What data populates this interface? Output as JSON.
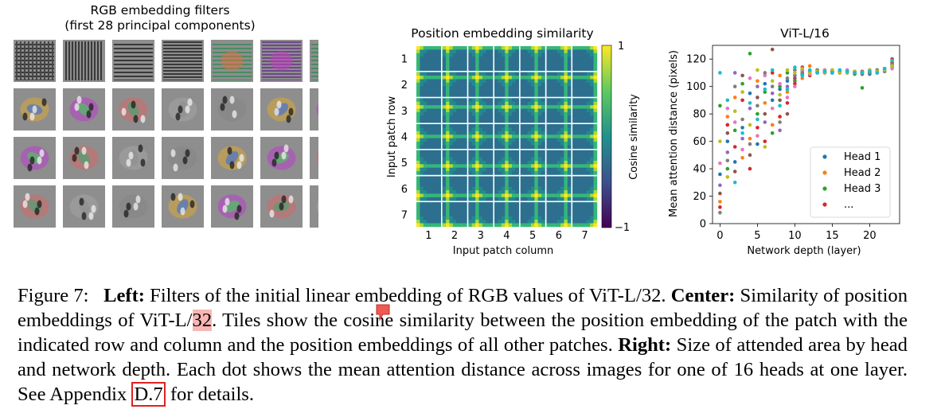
{
  "left": {
    "title_line1": "RGB embedding filters",
    "title_line2": "(first 28 principal components)",
    "grid": {
      "rows": 4,
      "cols": 7
    }
  },
  "center": {
    "title": "Position embedding similarity",
    "xlabel": "Input patch column",
    "ylabel": "Input patch row",
    "ticks": [
      "1",
      "2",
      "3",
      "4",
      "5",
      "6",
      "7"
    ],
    "colorbar_label": "Cosine similarity",
    "colorbar_max": "1",
    "colorbar_min": "−1"
  },
  "chart_data": {
    "type": "scatter",
    "title": "ViT-L/16",
    "xlabel": "Network depth (layer)",
    "ylabel": "Mean attention distance (pixels)",
    "xlim": [
      -1,
      24
    ],
    "ylim": [
      0,
      130
    ],
    "xticks": [
      0,
      5,
      10,
      15,
      20
    ],
    "yticks": [
      0,
      20,
      40,
      60,
      80,
      100,
      120
    ],
    "legend_placement": "lower-right",
    "legend": [
      "Head 1",
      "Head 2",
      "Head 3",
      "..."
    ],
    "colors": [
      "#1f77b4",
      "#ff7f0e",
      "#2ca02c",
      "#d62728",
      "#9467bd",
      "#8c564b",
      "#e377c2",
      "#7f7f7f",
      "#bcbd22",
      "#17becf"
    ],
    "series": [
      {
        "name": "Head 1",
        "color": "#1f77b4",
        "x": [
          0,
          1,
          2,
          3,
          4,
          5,
          6,
          7,
          8,
          9,
          10,
          11,
          12,
          13,
          14,
          15,
          16,
          17,
          18,
          19,
          20,
          21,
          22,
          23
        ],
        "y": [
          36,
          60,
          45,
          70,
          95,
          58,
          102,
          90,
          98,
          104,
          108,
          109,
          110,
          111,
          110,
          110,
          111,
          110,
          111,
          110,
          109,
          110,
          112,
          115
        ]
      },
      {
        "name": "Head 2",
        "color": "#ff7f0e",
        "x": [
          0,
          1,
          2,
          3,
          4,
          5,
          6,
          7,
          8,
          9,
          10,
          11,
          12,
          13,
          14,
          15,
          16,
          17,
          18,
          19,
          20,
          21,
          22,
          23
        ],
        "y": [
          16,
          78,
          92,
          48,
          62,
          104,
          88,
          72,
          108,
          96,
          112,
          106,
          115,
          112,
          110,
          111,
          110,
          112,
          110,
          111,
          110,
          111,
          112,
          118
        ]
      },
      {
        "name": "Head 3",
        "color": "#2ca02c",
        "x": [
          0,
          1,
          2,
          3,
          4,
          5,
          6,
          7,
          8,
          9,
          10,
          11,
          12,
          13,
          14,
          15,
          16,
          17,
          18,
          19,
          20,
          21,
          22,
          23
        ],
        "y": [
          86,
          40,
          68,
          102,
          124,
          80,
          96,
          66,
          100,
          110,
          104,
          112,
          111,
          110,
          112,
          110,
          111,
          110,
          109,
          99,
          110,
          112,
          113,
          116
        ]
      },
      {
        "name": "...",
        "color": "#d62728",
        "x": [
          0,
          1,
          2,
          3,
          4,
          5,
          6,
          7,
          8,
          9,
          10,
          11,
          12,
          13,
          14,
          15,
          16,
          17,
          18,
          19,
          20,
          21,
          22,
          23
        ],
        "y": [
          12,
          72,
          56,
          90,
          40,
          70,
          60,
          110,
          78,
          88,
          102,
          114,
          108,
          111,
          110,
          112,
          110,
          111,
          110,
          110,
          112,
          110,
          111,
          120
        ]
      },
      {
        "name": "",
        "color": "#9467bd",
        "x": [
          0,
          1,
          2,
          3,
          4,
          5,
          6,
          7,
          8,
          9,
          10,
          11,
          12,
          13,
          14,
          15,
          16,
          17,
          18,
          19,
          20,
          21,
          22,
          23
        ],
        "y": [
          28,
          52,
          110,
          62,
          84,
          100,
          74,
          95,
          68,
          100,
          108,
          110,
          112,
          110,
          111,
          110,
          112,
          110,
          111,
          110,
          111,
          112,
          113,
          114
        ]
      },
      {
        "name": "",
        "color": "#8c564b",
        "x": [
          0,
          1,
          2,
          3,
          4,
          5,
          6,
          7,
          8,
          9,
          10,
          11,
          12,
          13,
          14,
          15,
          16,
          17,
          18,
          19,
          20,
          21,
          22,
          23
        ],
        "y": [
          22,
          66,
          38,
          108,
          50,
          92,
          80,
          127,
          90,
          80,
          106,
          108,
          110,
          112,
          110,
          111,
          110,
          111,
          110,
          109,
          110,
          111,
          112,
          117
        ]
      },
      {
        "name": "",
        "color": "#e377c2",
        "x": [
          0,
          1,
          2,
          3,
          4,
          5,
          6,
          7,
          8,
          9,
          10,
          11,
          12,
          13,
          14,
          15,
          16,
          17,
          18,
          19,
          20,
          21,
          22,
          23
        ],
        "y": [
          44,
          84,
          74,
          54,
          106,
          64,
          108,
          84,
          102,
          92,
          100,
          111,
          109,
          110,
          112,
          110,
          110,
          112,
          111,
          110,
          111,
          110,
          112,
          113
        ]
      },
      {
        "name": "",
        "color": "#7f7f7f",
        "x": [
          0,
          1,
          2,
          3,
          4,
          5,
          6,
          7,
          8,
          9,
          10,
          11,
          12,
          13,
          14,
          15,
          16,
          17,
          18,
          19,
          20,
          21,
          22,
          23
        ],
        "y": [
          8,
          46,
          100,
          76,
          58,
          86,
          110,
          100,
          74,
          106,
          112,
          110,
          111,
          112,
          110,
          111,
          111,
          110,
          110,
          111,
          110,
          112,
          111,
          116
        ]
      },
      {
        "name": "",
        "color": "#bcbd22",
        "x": [
          0,
          1,
          2,
          3,
          4,
          5,
          6,
          7,
          8,
          9,
          10,
          11,
          12,
          13,
          14,
          15,
          16,
          17,
          18,
          19,
          20,
          21,
          22,
          23
        ],
        "y": [
          60,
          34,
          82,
          96,
          72,
          112,
          56,
          104,
          94,
          112,
          110,
          113,
          110,
          111,
          110,
          112,
          110,
          110,
          111,
          110,
          112,
          111,
          112,
          115
        ]
      },
      {
        "name": "",
        "color": "#17becf",
        "x": [
          0,
          1,
          2,
          3,
          4,
          5,
          6,
          7,
          8,
          9,
          10,
          11,
          12,
          13,
          14,
          15,
          16,
          17,
          18,
          19,
          20,
          21,
          22,
          23
        ],
        "y": [
          110,
          90,
          30,
          66,
          88,
          76,
          98,
          112,
          86,
          98,
          114,
          108,
          112,
          110,
          111,
          110,
          112,
          111,
          110,
          110,
          111,
          110,
          113,
          119
        ]
      }
    ]
  },
  "caption": {
    "fig_label": "Figure 7:",
    "left_label": "Left:",
    "left_text": "Filters of the initial linear embedding of RGB values of ViT-L/32.",
    "center_label": "Center:",
    "center_text_a": "Similarity of position embeddings of ViT-L/",
    "center_text_hl": "32",
    "center_text_b": ". Tiles show the cosine similarity between the position embedding of the patch with the indicated row and column and the position embeddings of all other patches.",
    "right_label": "Right:",
    "right_text": "Size of attended area by head and network depth. Each dot shows the mean attention distance across images for one of 16 heads at one layer. See Appendix",
    "appendix_ref": "D.7",
    "tail_text": "for details."
  }
}
